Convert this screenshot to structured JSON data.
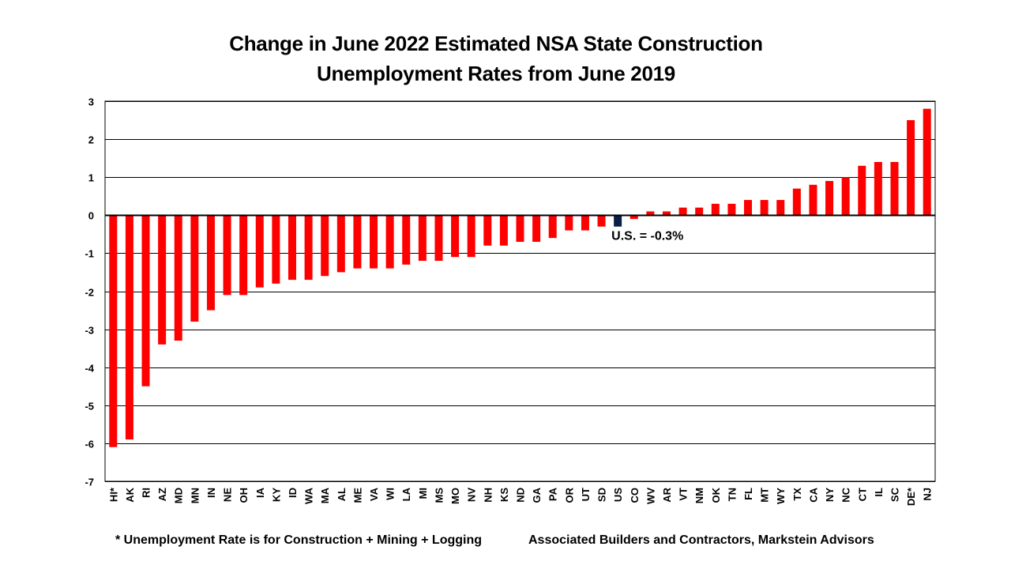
{
  "chart_data": {
    "type": "bar",
    "title": [
      "Change in June 2022 Estimated NSA State Construction",
      "Unemployment Rates from June 2019"
    ],
    "categories": [
      "HI*",
      "AK",
      "RI",
      "AZ",
      "MD",
      "MN",
      "IN",
      "NE",
      "OH",
      "IA",
      "KY",
      "ID",
      "WA",
      "MA",
      "AL",
      "ME",
      "VA",
      "WI",
      "LA",
      "MI",
      "MS",
      "MO",
      "NV",
      "NH",
      "KS",
      "ND",
      "GA",
      "PA",
      "OR",
      "UT",
      "SD",
      "US",
      "CO",
      "WV",
      "AR",
      "VT",
      "NM",
      "OK",
      "TN",
      "FL",
      "MT",
      "WY",
      "TX",
      "CA",
      "NY",
      "NC",
      "CT",
      "IL",
      "SC",
      "DE*",
      "NJ"
    ],
    "values": [
      -6.1,
      -5.9,
      -4.5,
      -3.4,
      -3.3,
      -2.8,
      -2.5,
      -2.1,
      -2.1,
      -1.9,
      -1.8,
      -1.7,
      -1.7,
      -1.6,
      -1.5,
      -1.4,
      -1.4,
      -1.4,
      -1.3,
      -1.2,
      -1.2,
      -1.1,
      -1.1,
      -0.8,
      -0.8,
      -0.7,
      -0.7,
      -0.6,
      -0.4,
      -0.4,
      -0.3,
      -0.3,
      -0.1,
      0.1,
      0.1,
      0.2,
      0.2,
      0.3,
      0.3,
      0.4,
      0.4,
      0.4,
      0.7,
      0.8,
      0.9,
      1.0,
      1.3,
      1.4,
      1.4,
      2.5,
      2.8
    ],
    "ylim": [
      -7,
      3
    ],
    "yticks": [
      3,
      2,
      1,
      0,
      -1,
      -2,
      -3,
      -4,
      -5,
      -6,
      -7
    ],
    "grid": true,
    "legend": "none",
    "highlight_category": "US",
    "colors": {
      "bar": "#ff0000",
      "highlight": "#0a1f44",
      "grid": "#000000"
    },
    "annotation": "U.S. = -0.3%"
  },
  "footnotes": {
    "left": "* Unemployment Rate is for Construction + Mining + Logging",
    "right": "Associated Builders and Contractors, Markstein Advisors"
  }
}
